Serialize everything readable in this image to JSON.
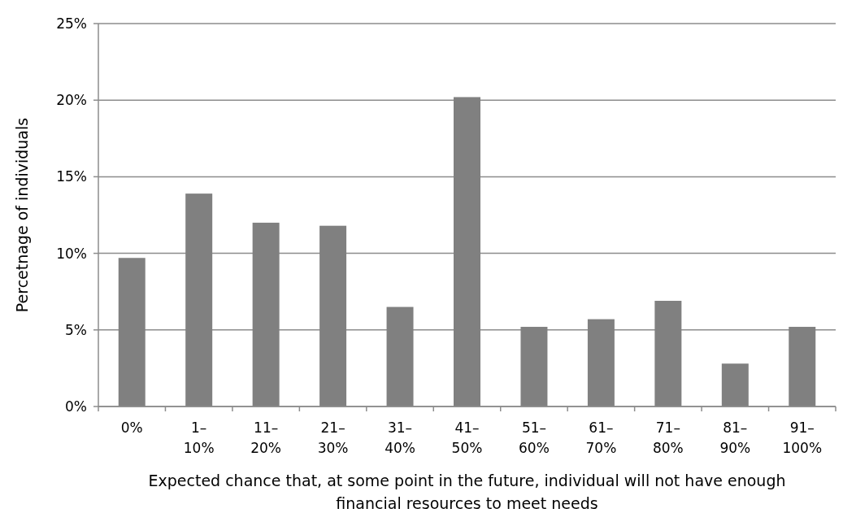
{
  "chart_data": {
    "type": "bar",
    "xlabel": "Expected chance that, at some point in the future, individual will not have enough financial resources to meet needs",
    "ylabel": "Percetnage of individuals",
    "categories": [
      "0%",
      "1–10%",
      "11–20%",
      "21–30%",
      "31–40%",
      "41–50%",
      "51–60%",
      "61–70%",
      "71–80%",
      "81–90%",
      "91–100%"
    ],
    "values": [
      9.7,
      13.9,
      12.0,
      11.8,
      6.5,
      20.2,
      5.2,
      5.7,
      6.9,
      2.8,
      5.2
    ],
    "color": "#808080",
    "ylim": [
      0,
      25
    ],
    "yticks": [
      {
        "value": 0,
        "label": "0%"
      },
      {
        "value": 5,
        "label": "5%"
      },
      {
        "value": 10,
        "label": "10%"
      },
      {
        "value": 15,
        "label": "15%"
      },
      {
        "value": 20,
        "label": "20%"
      },
      {
        "value": 25,
        "label": "25%"
      }
    ],
    "grid": "y"
  }
}
